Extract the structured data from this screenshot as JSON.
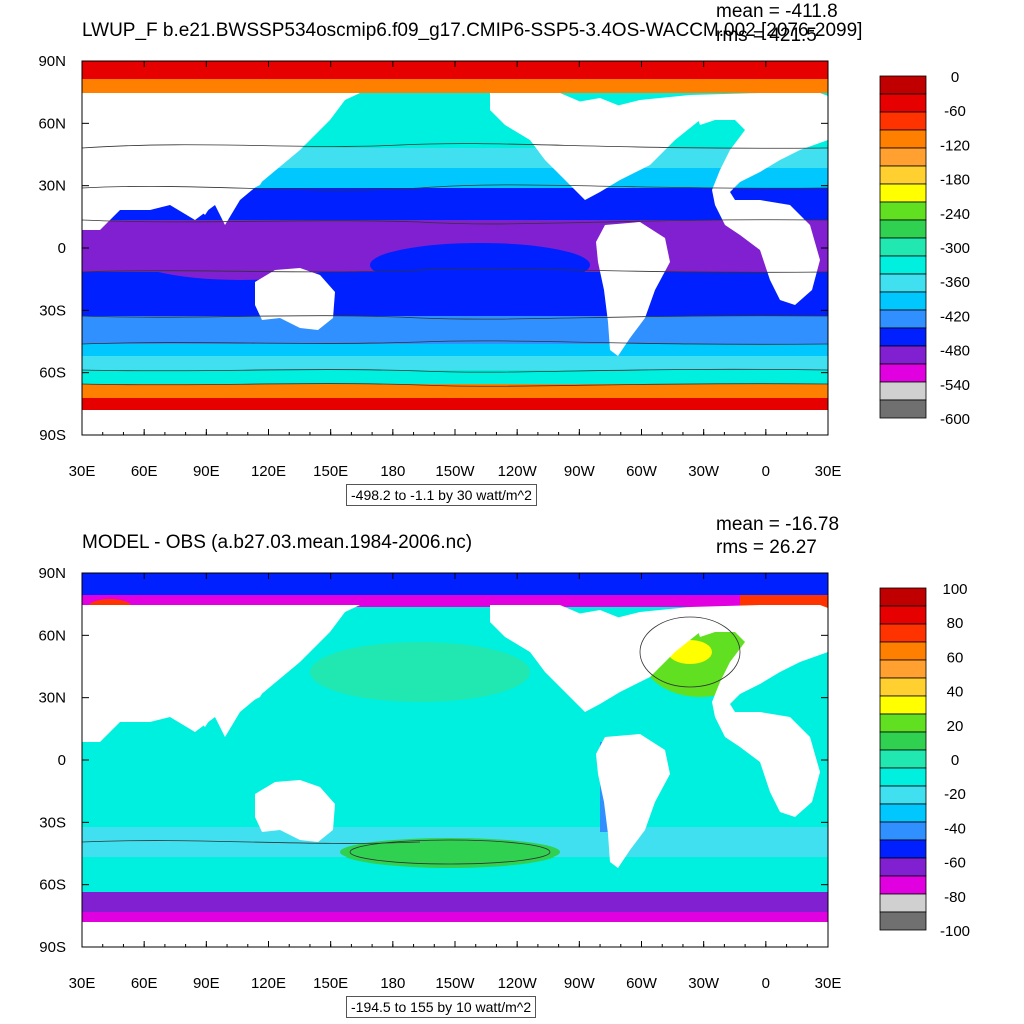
{
  "chart_data": [
    {
      "type": "heatmap",
      "title": "LWUP_F b.e21.BWSSP534oscmip6.f09_g17.CMIP6-SSP5-3.4OS-WACCM.002 [2076-2099]",
      "mean_label": "mean = -411.8",
      "rms_label": "rms = 421.5",
      "subtitle": "-498.2 to -1.1 by 30 watt/m^2",
      "x_ticks": [
        "30E",
        "60E",
        "90E",
        "120E",
        "150E",
        "180",
        "150W",
        "120W",
        "90W",
        "60W",
        "30W",
        "0",
        "30E"
      ],
      "y_ticks": [
        "90N",
        "60N",
        "30N",
        "0",
        "30S",
        "60S",
        "90S"
      ],
      "colorbar_labels": [
        "0",
        "-60",
        "-120",
        "-180",
        "-240",
        "-300",
        "-360",
        "-420",
        "-480",
        "-540",
        "-600"
      ],
      "colorbar_colors": [
        "#c00000",
        "#e60000",
        "#ff3300",
        "#ff8000",
        "#ffa030",
        "#ffd030",
        "#ffff00",
        "#60e020",
        "#30d050",
        "#20e8b0",
        "#00f0e0",
        "#40e0f0",
        "#00c8ff",
        "#3090ff",
        "#0020ff",
        "#8020d0",
        "#e000e0",
        "#d0d0d0",
        "#707070"
      ],
      "value_range": [
        -498.2,
        -1.1
      ],
      "contour_interval": 30
    },
    {
      "type": "heatmap",
      "title": "MODEL - OBS (a.b27.03.mean.1984-2006.nc)",
      "mean_label": "mean = -16.78",
      "rms_label": "rms = 26.27",
      "subtitle": "-194.5 to 155 by 10 watt/m^2",
      "x_ticks": [
        "30E",
        "60E",
        "90E",
        "120E",
        "150E",
        "180",
        "150W",
        "120W",
        "90W",
        "60W",
        "30W",
        "0",
        "30E"
      ],
      "y_ticks": [
        "90N",
        "60N",
        "30N",
        "0",
        "30S",
        "60S",
        "90S"
      ],
      "colorbar_labels": [
        "100",
        "80",
        "60",
        "40",
        "20",
        "0",
        "-20",
        "-40",
        "-60",
        "-80",
        "-100"
      ],
      "colorbar_colors": [
        "#c00000",
        "#e60000",
        "#ff3300",
        "#ff8000",
        "#ffa030",
        "#ffd030",
        "#ffff00",
        "#60e020",
        "#30d050",
        "#20e8b0",
        "#00f0e0",
        "#40e0f0",
        "#00c8ff",
        "#3090ff",
        "#0020ff",
        "#8020d0",
        "#e000e0",
        "#d0d0d0",
        "#707070"
      ],
      "value_range": [
        -194.5,
        155
      ],
      "contour_interval": 10
    }
  ]
}
